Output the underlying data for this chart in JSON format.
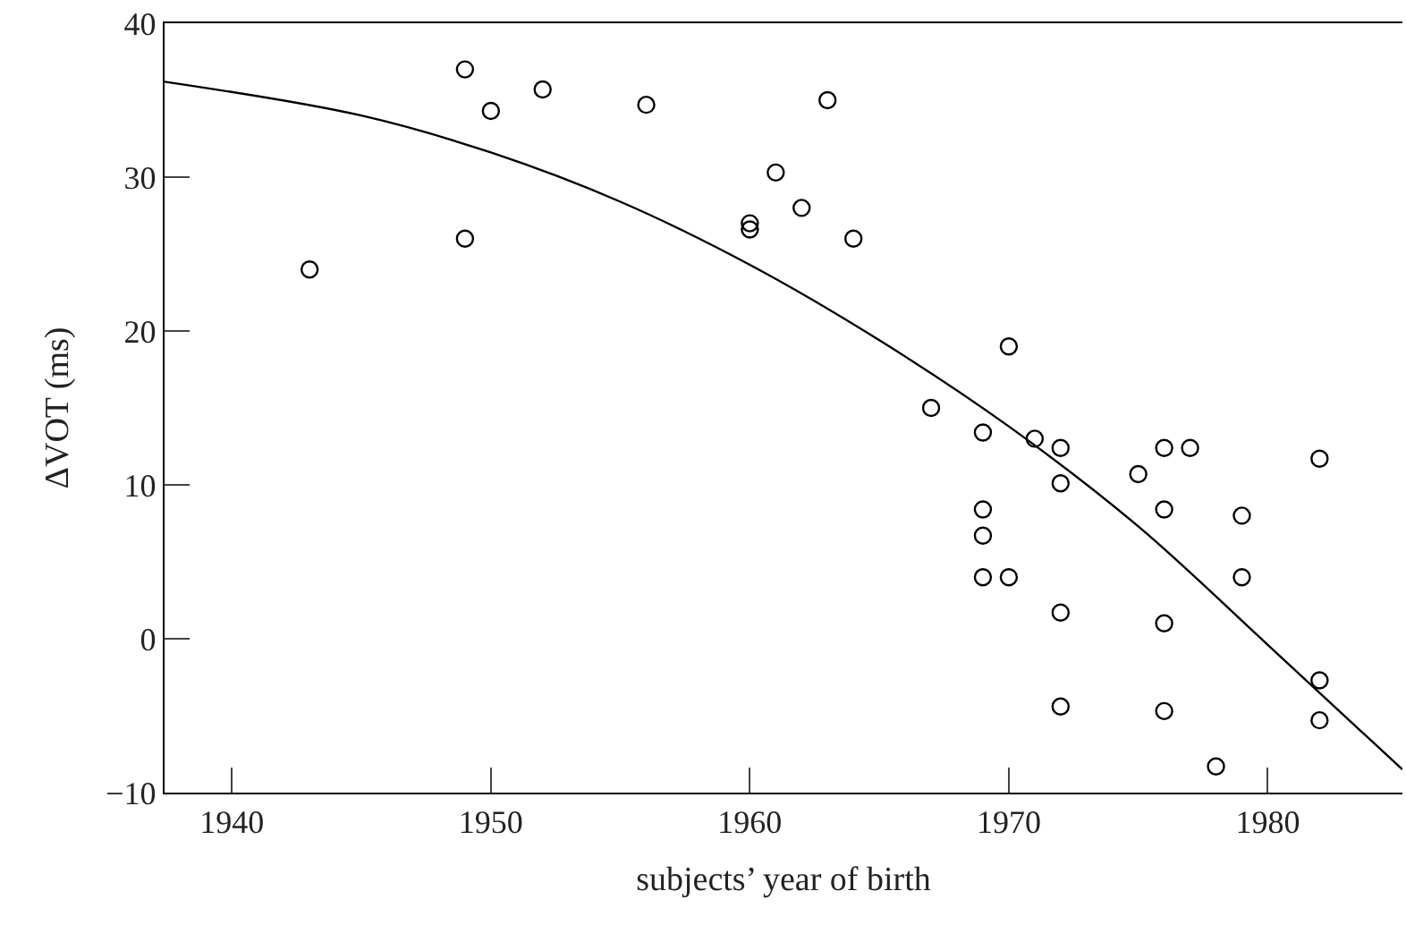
{
  "chart_data": {
    "type": "scatter",
    "xlabel": "subjects’ year of birth",
    "ylabel": "ΔVOT (ms)",
    "xlim": [
      1937.4,
      1985.2
    ],
    "xticks": [
      1940,
      1950,
      1960,
      1970,
      1980
    ],
    "ylim": [
      -10,
      40
    ],
    "yticks": [
      -10,
      0,
      10,
      20,
      30,
      40
    ],
    "marker": "circle",
    "series": [
      {
        "color": "#000000",
        "x": [
          1943,
          1949,
          1949,
          1950,
          1952,
          1956,
          1960,
          1960,
          1961,
          1962,
          1963,
          1964,
          1967,
          1969,
          1969,
          1969,
          1969,
          1970,
          1970,
          1971,
          1972,
          1972,
          1972,
          1972,
          1975,
          1976,
          1976,
          1976,
          1976,
          1977,
          1978,
          1979,
          1979,
          1982,
          1982,
          1982
        ],
        "values": [
          24.0,
          37.0,
          26.0,
          34.3,
          35.7,
          34.7,
          27.0,
          26.6,
          30.3,
          28.0,
          35.0,
          26.0,
          15.0,
          13.4,
          8.4,
          6.7,
          4.0,
          19.0,
          4.0,
          13.0,
          12.4,
          10.1,
          1.7,
          -4.4,
          10.7,
          12.4,
          8.4,
          1.0,
          -4.7,
          12.4,
          -8.3,
          8.0,
          4.0,
          11.7,
          -2.7,
          -5.3
        ]
      },
      {
        "type": "line",
        "color": "#000000",
        "marker": "none",
        "line_style": "solid",
        "x": [
          1937.4,
          1945,
          1950,
          1955,
          1960,
          1965,
          1970,
          1975,
          1980,
          1985.2
        ],
        "values": [
          36.2,
          34.0,
          31.6,
          28.4,
          24.3,
          19.4,
          13.8,
          7.3,
          -0.4,
          -8.5
        ]
      }
    ]
  }
}
